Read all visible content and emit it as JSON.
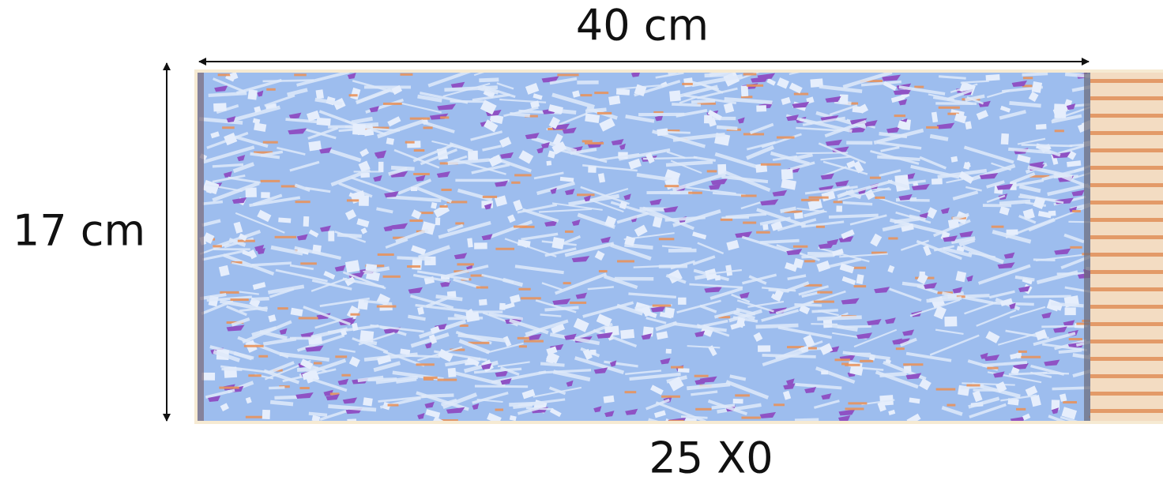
{
  "labels": {
    "width": "40 cm",
    "height": "17 cm",
    "depth": "25 X0"
  }
}
